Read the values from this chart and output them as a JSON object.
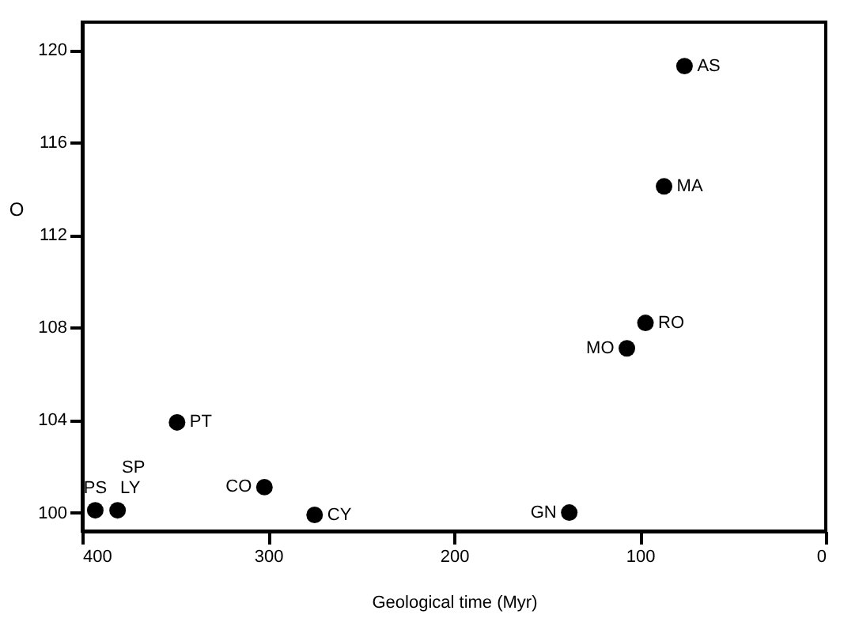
{
  "chart_data": {
    "type": "scatter",
    "x": [
      393,
      381,
      349,
      302,
      275,
      138,
      107,
      97,
      87,
      76
    ],
    "series": [
      {
        "color": "#000000",
        "values": [
          100.1,
          100.1,
          103.9,
          101.1,
          99.9,
          100.0,
          107.1,
          108.2,
          114.1,
          119.3
        ]
      }
    ],
    "marker": "circle",
    "xlabel": "Geological time (Myr)",
    "ylabel": "O",
    "xlim": [
      400,
      0
    ],
    "xticks": [
      400,
      300,
      200,
      100,
      0
    ],
    "ylim": [
      99.2,
      121.2
    ],
    "yticks": [
      100,
      104,
      108,
      112,
      116,
      120
    ],
    "grid": false,
    "annotations": [
      {
        "text": "AS",
        "x": 76,
        "y": 119.3
      },
      {
        "text": "MA",
        "x": 87,
        "y": 114.1
      },
      {
        "text": "RO",
        "x": 97,
        "y": 108.2
      },
      {
        "text": "MO",
        "x": 107,
        "y": 107.1
      },
      {
        "text": "PT",
        "x": 349,
        "y": 103.9
      },
      {
        "text": "CO",
        "x": 302,
        "y": 101.1
      },
      {
        "text": "CY",
        "x": 275,
        "y": 99.9
      },
      {
        "text": "GN",
        "x": 138,
        "y": 100.0
      },
      {
        "text": "PS",
        "x": 393,
        "y": 100.1
      },
      {
        "text": "SP",
        "x": 381,
        "y": 100.1
      },
      {
        "text": "LY",
        "x": 381,
        "y": 100.1
      }
    ]
  }
}
